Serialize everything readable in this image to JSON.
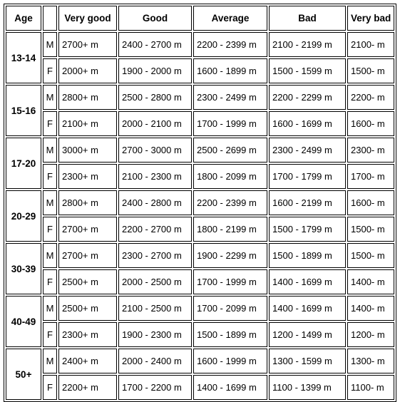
{
  "headers": {
    "age": "Age",
    "sex": "",
    "very_good": "Very good",
    "good": "Good",
    "average": "Average",
    "bad": "Bad",
    "very_bad": "Very bad"
  },
  "groups": [
    {
      "age": "13-14",
      "rows": [
        {
          "sex": "M",
          "very_good": "2700+ m",
          "good": "2400 - 2700 m",
          "average": "2200 - 2399 m",
          "bad": "2100 - 2199 m",
          "very_bad": "2100- m"
        },
        {
          "sex": "F",
          "very_good": "2000+ m",
          "good": "1900 - 2000 m",
          "average": "1600 - 1899 m",
          "bad": "1500 - 1599 m",
          "very_bad": "1500- m"
        }
      ]
    },
    {
      "age": "15-16",
      "rows": [
        {
          "sex": "M",
          "very_good": "2800+ m",
          "good": "2500 - 2800 m",
          "average": "2300 - 2499 m",
          "bad": "2200 - 2299 m",
          "very_bad": "2200- m"
        },
        {
          "sex": "F",
          "very_good": "2100+ m",
          "good": "2000 - 2100 m",
          "average": "1700 - 1999 m",
          "bad": "1600 - 1699 m",
          "very_bad": "1600- m"
        }
      ]
    },
    {
      "age": "17-20",
      "rows": [
        {
          "sex": "M",
          "very_good": "3000+ m",
          "good": "2700 - 3000 m",
          "average": "2500 - 2699 m",
          "bad": "2300 - 2499 m",
          "very_bad": "2300- m"
        },
        {
          "sex": "F",
          "very_good": "2300+ m",
          "good": "2100 - 2300 m",
          "average": "1800 - 2099 m",
          "bad": "1700 - 1799 m",
          "very_bad": "1700- m"
        }
      ]
    },
    {
      "age": "20-29",
      "rows": [
        {
          "sex": "M",
          "very_good": "2800+ m",
          "good": "2400 - 2800 m",
          "average": "2200 - 2399 m",
          "bad": "1600 - 2199 m",
          "very_bad": "1600- m"
        },
        {
          "sex": "F",
          "very_good": "2700+ m",
          "good": "2200 - 2700 m",
          "average": "1800 - 2199 m",
          "bad": "1500 - 1799 m",
          "very_bad": "1500- m"
        }
      ]
    },
    {
      "age": "30-39",
      "rows": [
        {
          "sex": "M",
          "very_good": "2700+ m",
          "good": "2300 - 2700 m",
          "average": "1900 - 2299 m",
          "bad": "1500 - 1899 m",
          "very_bad": "1500- m"
        },
        {
          "sex": "F",
          "very_good": "2500+ m",
          "good": "2000 - 2500 m",
          "average": "1700 - 1999 m",
          "bad": "1400 - 1699 m",
          "very_bad": "1400- m"
        }
      ]
    },
    {
      "age": "40-49",
      "rows": [
        {
          "sex": "M",
          "very_good": "2500+ m",
          "good": "2100 - 2500 m",
          "average": "1700 - 2099 m",
          "bad": "1400 - 1699 m",
          "very_bad": "1400- m"
        },
        {
          "sex": "F",
          "very_good": "2300+ m",
          "good": "1900 - 2300 m",
          "average": "1500 - 1899 m",
          "bad": "1200 - 1499 m",
          "very_bad": "1200- m"
        }
      ]
    },
    {
      "age": "50+",
      "rows": [
        {
          "sex": "M",
          "very_good": "2400+ m",
          "good": "2000 - 2400 m",
          "average": "1600 - 1999 m",
          "bad": "1300 - 1599 m",
          "very_bad": "1300- m"
        },
        {
          "sex": "F",
          "very_good": "2200+ m",
          "good": "1700 - 2200 m",
          "average": "1400 - 1699 m",
          "bad": "1100 - 1399 m",
          "very_bad": "1100- m"
        }
      ]
    }
  ]
}
